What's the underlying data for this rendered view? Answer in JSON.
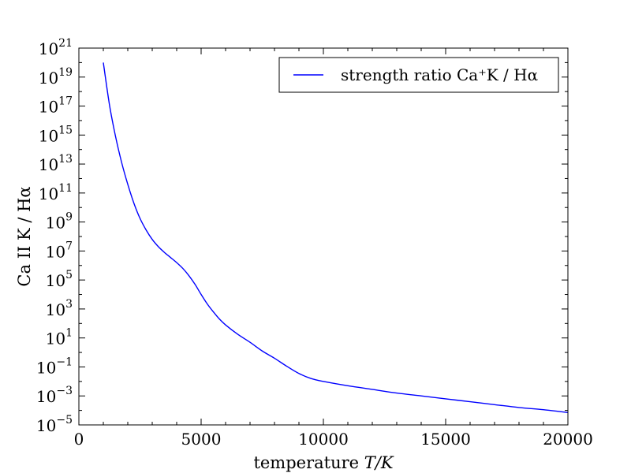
{
  "chart_data": {
    "type": "line",
    "title": "",
    "xlabel_prefix": "temperature ",
    "xlabel_math": "T/K",
    "ylabel": "Ca II K / Hα",
    "xlim": [
      0,
      20000
    ],
    "ylim_log10": [
      -5,
      21
    ],
    "yscale": "log",
    "x_ticks": [
      "0",
      "5000",
      "10000",
      "15000",
      "20000"
    ],
    "y_ticks": [
      {
        "base": "10",
        "exp": "−5"
      },
      {
        "base": "10",
        "exp": "−3"
      },
      {
        "base": "10",
        "exp": "−1"
      },
      {
        "base": "10",
        "exp": "1"
      },
      {
        "base": "10",
        "exp": "3"
      },
      {
        "base": "10",
        "exp": "5"
      },
      {
        "base": "10",
        "exp": "7"
      },
      {
        "base": "10",
        "exp": "9"
      },
      {
        "base": "10",
        "exp": "11"
      },
      {
        "base": "10",
        "exp": "13"
      },
      {
        "base": "10",
        "exp": "15"
      },
      {
        "base": "10",
        "exp": "17"
      },
      {
        "base": "10",
        "exp": "19"
      },
      {
        "base": "10",
        "exp": "21"
      }
    ],
    "grid": false,
    "legend_position": "top-right",
    "series": [
      {
        "name": "strength ratio Ca⁺K / Hα",
        "color": "#0000ff",
        "x": [
          1000,
          1250,
          1500,
          1750,
          2000,
          2250,
          2500,
          2750,
          3000,
          3250,
          3500,
          3750,
          4000,
          4250,
          4500,
          4750,
          5000,
          5250,
          5500,
          5750,
          6000,
          6500,
          7000,
          7500,
          8000,
          8500,
          9000,
          9500,
          10000,
          11000,
          12000,
          13000,
          14000,
          15000,
          16000,
          17000,
          18000,
          19000,
          20000
        ],
        "y_log10": [
          20.0,
          17.1,
          14.9,
          13.1,
          11.6,
          10.3,
          9.25,
          8.45,
          7.8,
          7.3,
          6.9,
          6.55,
          6.2,
          5.8,
          5.3,
          4.7,
          4.0,
          3.35,
          2.8,
          2.3,
          1.9,
          1.25,
          0.7,
          0.1,
          -0.4,
          -0.95,
          -1.45,
          -1.8,
          -2.0,
          -2.3,
          -2.55,
          -2.8,
          -3.0,
          -3.2,
          -3.4,
          -3.6,
          -3.8,
          -3.95,
          -4.15
        ]
      }
    ]
  }
}
